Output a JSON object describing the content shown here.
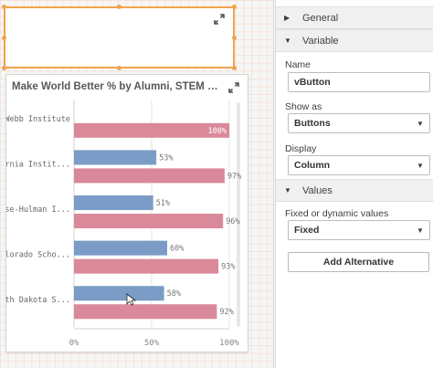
{
  "canvas": {
    "button_object": {
      "expand_icon": "expand-arrows-icon"
    },
    "chart_object": {
      "title": "Make World Better % by Alumni, STEM % by Uni...",
      "expand_icon": "expand-arrows-icon"
    }
  },
  "chart_data": {
    "type": "bar",
    "orientation": "horizontal",
    "title": "Make World Better % by Alumni, STEM % by Uni...",
    "categories": [
      "Webb Institute",
      "California Instit...",
      "Rose-Hulman I...",
      "Colorado Scho...",
      "South Dakota S..."
    ],
    "series": [
      {
        "color": "#7a9cc6",
        "values": [
          null,
          53,
          51,
          60,
          58
        ]
      },
      {
        "color": "#d9899a",
        "values": [
          100,
          97,
          96,
          93,
          92
        ]
      }
    ],
    "data_labels": [
      [
        "",
        "53%",
        "51%",
        "60%",
        "58%"
      ],
      [
        "100%",
        "97%",
        "96%",
        "93%",
        "92%"
      ]
    ],
    "x_ticks": [
      "0%",
      "50%",
      "100%"
    ],
    "xlim": [
      0,
      100
    ],
    "grid": true
  },
  "panel": {
    "sections": {
      "general": "General",
      "variable": "Variable",
      "values": "Values"
    },
    "name_label": "Name",
    "name_value": "vButton",
    "show_as_label": "Show as",
    "show_as_value": "Buttons",
    "display_label": "Display",
    "display_value": "Column",
    "fixed_label": "Fixed or dynamic values",
    "fixed_value": "Fixed",
    "add_alternative": "Add Alternative"
  },
  "colors": {
    "selection": "#f0a34d",
    "bar_blue": "#7a9cc6",
    "bar_pink": "#d9899a"
  }
}
